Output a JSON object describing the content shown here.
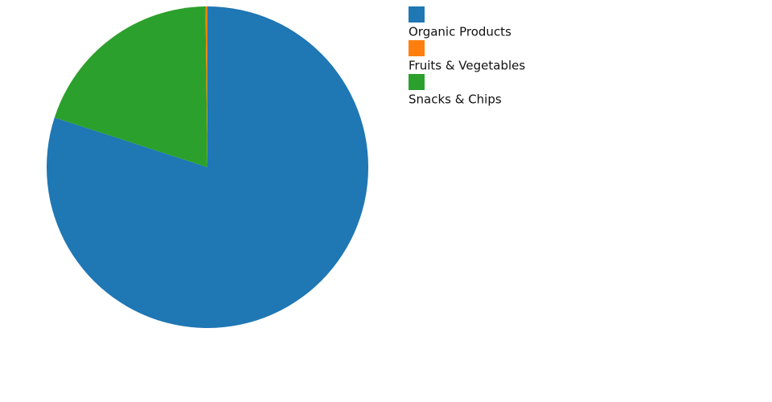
{
  "chart_data": {
    "type": "pie",
    "categories": [
      "Organic Products",
      "Fruits & Vegetables",
      "Snacks & Chips"
    ],
    "values": [
      80,
      0.2,
      19.8
    ],
    "colors": [
      "#1f77b4",
      "#ff7f0e",
      "#2ca02c"
    ]
  }
}
